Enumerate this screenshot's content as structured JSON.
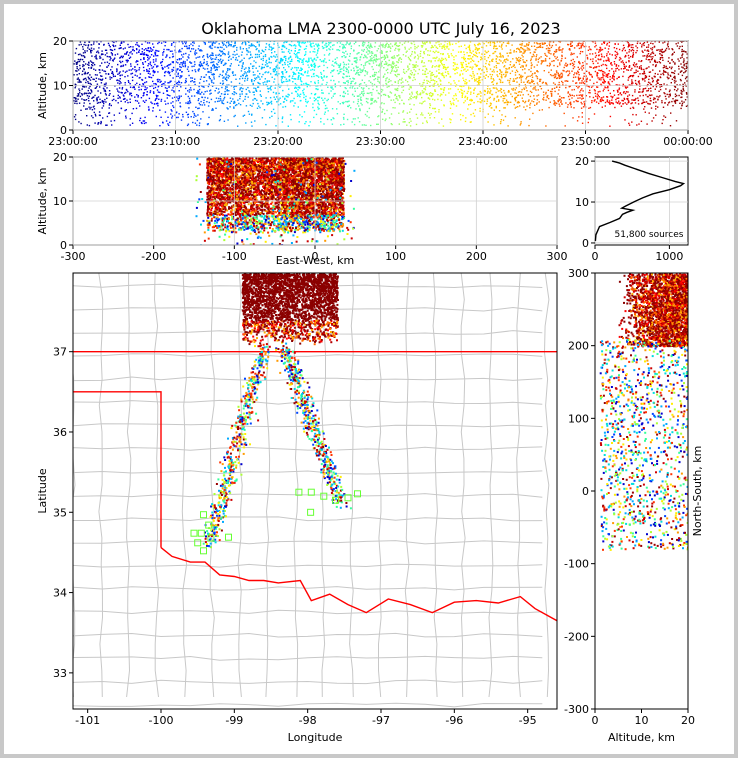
{
  "chart_data": [
    {
      "panel": "time-altitude",
      "type": "scatter",
      "title": "Oklahoma LMA 2300-0000 UTC July 16, 2023",
      "xlabel": "",
      "ylabel": "Altitude, km",
      "xtick_labels": [
        "23:00:00",
        "23:10:00",
        "23:20:00",
        "23:30:00",
        "23:40:00",
        "23:50:00",
        "00:00:00"
      ],
      "yticks": [
        0,
        10,
        20
      ],
      "xlim_minutes": [
        0,
        60
      ],
      "ylim": [
        0,
        20
      ],
      "grid": true,
      "colormap": "jet (color encodes time)",
      "note": "dense source cloud, mostly 5-20 km altitude throughout the hour"
    },
    {
      "panel": "east-west-altitude",
      "type": "scatter",
      "xlabel": "East-West, km",
      "ylabel": "Altitude, km",
      "xticks": [
        -300,
        -200,
        -100,
        0,
        100,
        200,
        300
      ],
      "yticks": [
        0,
        10,
        20
      ],
      "xlim": [
        -300,
        300
      ],
      "ylim": [
        0,
        20
      ],
      "grid": true,
      "clusters": [
        {
          "x_range": [
            -135,
            -35
          ],
          "alt_range": [
            3,
            20
          ]
        },
        {
          "x_range": [
            -40,
            35
          ],
          "alt_range": [
            3,
            20
          ]
        }
      ]
    },
    {
      "panel": "altitude-histogram",
      "type": "line",
      "xticks": [
        0,
        1000
      ],
      "yticks": [
        0,
        10,
        20
      ],
      "xlim": [
        0,
        1250
      ],
      "ylim": [
        -0.5,
        21
      ],
      "annotation": "51,800 sources",
      "profile": [
        {
          "alt": 0.5,
          "count": 5
        },
        {
          "alt": 2,
          "count": 12
        },
        {
          "alt": 4,
          "count": 60
        },
        {
          "alt": 5,
          "count": 200
        },
        {
          "alt": 6,
          "count": 330
        },
        {
          "alt": 7,
          "count": 370
        },
        {
          "alt": 7.5,
          "count": 430
        },
        {
          "alt": 8,
          "count": 510
        },
        {
          "alt": 8.5,
          "count": 360
        },
        {
          "alt": 9,
          "count": 410
        },
        {
          "alt": 10,
          "count": 520
        },
        {
          "alt": 11,
          "count": 640
        },
        {
          "alt": 12,
          "count": 780
        },
        {
          "alt": 13,
          "count": 1000
        },
        {
          "alt": 14,
          "count": 1150
        },
        {
          "alt": 14.5,
          "count": 1190
        },
        {
          "alt": 15,
          "count": 1080
        },
        {
          "alt": 16,
          "count": 900
        },
        {
          "alt": 17,
          "count": 720
        },
        {
          "alt": 18,
          "count": 560
        },
        {
          "alt": 19,
          "count": 400
        },
        {
          "alt": 19.5,
          "count": 330
        },
        {
          "alt": 20,
          "count": 230
        }
      ]
    },
    {
      "panel": "plan-view",
      "type": "scatter",
      "xlabel": "Longitude",
      "ylabel": "Latitude",
      "xticks": [
        -101,
        -100,
        -99,
        -98,
        -97,
        -96,
        -95
      ],
      "yticks": [
        33,
        34,
        35,
        36,
        37
      ],
      "xlim": [
        -101.2,
        -94.6
      ],
      "ylim": [
        32.55,
        37.98
      ],
      "storm_core": {
        "lon_range": [
          -98.9,
          -97.6
        ],
        "lat_range": [
          37.1,
          37.98
        ]
      },
      "trails": [
        {
          "lon_start": -98.6,
          "lat_start": 37.1,
          "lon_end": -99.35,
          "lat_end": 34.6
        },
        {
          "lon_start": -98.35,
          "lat_start": 37.1,
          "lon_end": -97.55,
          "lat_end": 35.1
        }
      ],
      "stations": [
        [
          -99.42,
          34.97
        ],
        [
          -99.35,
          34.84
        ],
        [
          -99.45,
          34.74
        ],
        [
          -99.55,
          34.74
        ],
        [
          -99.32,
          34.68
        ],
        [
          -99.5,
          34.62
        ],
        [
          -99.42,
          34.52
        ],
        [
          -99.08,
          34.69
        ],
        [
          -98.12,
          35.25
        ],
        [
          -97.95,
          35.25
        ],
        [
          -97.78,
          35.2
        ],
        [
          -97.62,
          35.15
        ],
        [
          -97.45,
          35.18
        ],
        [
          -97.32,
          35.23
        ],
        [
          -97.96,
          35.0
        ]
      ]
    },
    {
      "panel": "altitude-north-south",
      "type": "scatter",
      "xlabel": "Altitude, km",
      "ylabel": "North-South, km",
      "xticks": [
        0,
        10,
        20
      ],
      "yticks": [
        -300,
        -200,
        -100,
        0,
        100,
        200,
        300
      ],
      "xlim": [
        0,
        20
      ],
      "ylim": [
        -300,
        300
      ]
    }
  ]
}
